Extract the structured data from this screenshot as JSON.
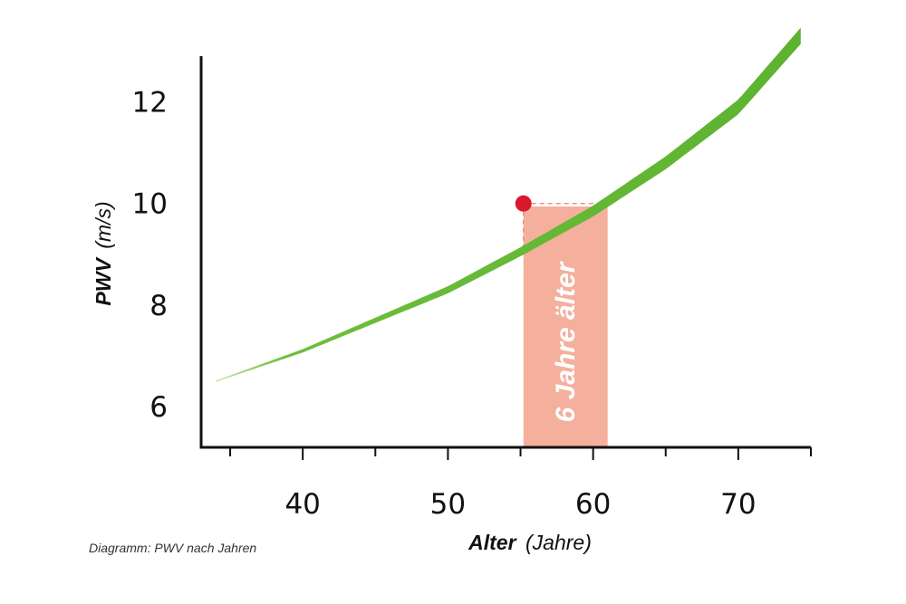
{
  "caption": "Diagramm: PWV nach Jahren",
  "chart_data": {
    "type": "line",
    "xlabel_bold": "Alter",
    "xlabel_unit": "(Jahre)",
    "ylabel_bold": "PWV",
    "ylabel_unit": "(m/s)",
    "xlim": [
      33,
      75
    ],
    "ylim": [
      5.2,
      12.9
    ],
    "x_ticks": [
      40,
      50,
      60,
      70
    ],
    "y_ticks": [
      6,
      8,
      10,
      12
    ],
    "grid": false,
    "series": [
      {
        "color": "#6cbf3b",
        "points": [
          [
            34,
            6.5
          ],
          [
            40,
            7.1
          ],
          [
            45,
            7.7
          ],
          [
            50,
            8.3
          ],
          [
            55,
            9.05
          ],
          [
            60,
            9.85
          ],
          [
            65,
            10.8
          ],
          [
            70,
            11.9
          ],
          [
            74.3,
            13.3
          ]
        ]
      }
    ],
    "marker": {
      "x": 55.2,
      "y": 10.0,
      "color": "#d9192b"
    },
    "band": {
      "x_start": 55.2,
      "x_end": 61,
      "color": "#f4b09c",
      "label": "6 Jahre älter"
    }
  }
}
